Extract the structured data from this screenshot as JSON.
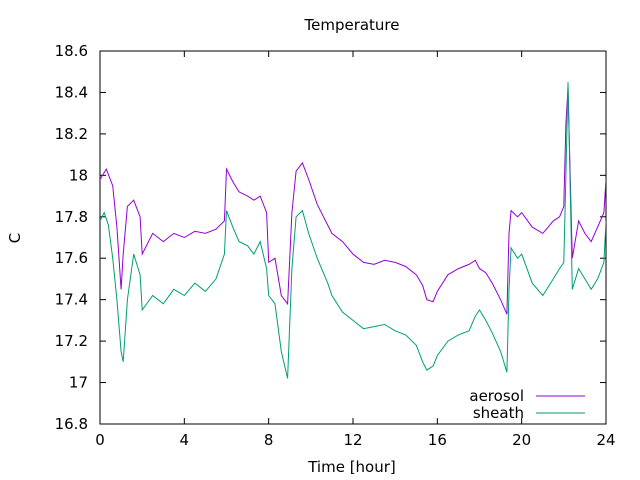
{
  "chart_data": {
    "type": "line",
    "title": "Temperature",
    "xlabel": "Time [hour]",
    "ylabel": "C",
    "xlim": [
      0,
      24
    ],
    "ylim": [
      16.8,
      18.6
    ],
    "xticks": [
      "0",
      "4",
      "8",
      "12",
      "16",
      "20",
      "24"
    ],
    "yticks": [
      "16.8",
      "17",
      "17.2",
      "17.4",
      "17.6",
      "17.8",
      "18",
      "18.2",
      "18.4",
      "18.6"
    ],
    "grid": false,
    "legend_position": "bottom-right",
    "series": [
      {
        "name": "aerosol",
        "color": "#9400d3",
        "x": [
          0,
          0.3,
          0.6,
          0.8,
          1.0,
          1.1,
          1.3,
          1.6,
          1.9,
          2.0,
          2.5,
          3.0,
          3.5,
          4.0,
          4.5,
          5.0,
          5.5,
          5.9,
          6.0,
          6.3,
          6.6,
          7.0,
          7.3,
          7.6,
          7.9,
          8.0,
          8.3,
          8.6,
          8.9,
          9.1,
          9.3,
          9.6,
          9.9,
          10.3,
          10.8,
          11.0,
          11.5,
          12.0,
          12.5,
          13.0,
          13.5,
          14.0,
          14.5,
          15.0,
          15.3,
          15.5,
          15.8,
          16.0,
          16.5,
          17.0,
          17.5,
          17.8,
          18.0,
          18.3,
          18.6,
          19.0,
          19.3,
          19.4,
          19.5,
          19.8,
          20.0,
          20.5,
          21.0,
          21.5,
          21.8,
          22.0,
          22.1,
          22.2,
          22.4,
          22.7,
          23.0,
          23.3,
          23.6,
          23.9,
          24.0
        ],
        "y": [
          17.98,
          18.03,
          17.95,
          17.75,
          17.45,
          17.62,
          17.85,
          17.88,
          17.8,
          17.62,
          17.72,
          17.68,
          17.72,
          17.7,
          17.73,
          17.72,
          17.74,
          17.78,
          18.03,
          17.97,
          17.92,
          17.9,
          17.88,
          17.9,
          17.82,
          17.58,
          17.6,
          17.42,
          17.38,
          17.82,
          18.02,
          18.06,
          17.98,
          17.86,
          17.76,
          17.72,
          17.68,
          17.62,
          17.58,
          17.57,
          17.59,
          17.58,
          17.56,
          17.52,
          17.47,
          17.4,
          17.39,
          17.44,
          17.52,
          17.55,
          17.57,
          17.59,
          17.55,
          17.53,
          17.48,
          17.4,
          17.33,
          17.72,
          17.83,
          17.8,
          17.82,
          17.75,
          17.72,
          17.78,
          17.8,
          17.85,
          18.25,
          18.42,
          17.6,
          17.78,
          17.72,
          17.68,
          17.75,
          17.82,
          17.98
        ]
      },
      {
        "name": "sheath",
        "color": "#009e73",
        "x": [
          0,
          0.2,
          0.4,
          0.6,
          0.8,
          1.0,
          1.1,
          1.3,
          1.6,
          1.9,
          2.0,
          2.5,
          3.0,
          3.5,
          4.0,
          4.5,
          5.0,
          5.5,
          5.9,
          6.0,
          6.3,
          6.6,
          7.0,
          7.3,
          7.6,
          7.9,
          8.0,
          8.3,
          8.6,
          8.9,
          9.1,
          9.3,
          9.6,
          9.9,
          10.3,
          10.8,
          11.0,
          11.5,
          12.0,
          12.5,
          13.0,
          13.5,
          14.0,
          14.5,
          15.0,
          15.3,
          15.5,
          15.8,
          16.0,
          16.5,
          17.0,
          17.5,
          17.8,
          18.0,
          18.3,
          18.6,
          19.0,
          19.3,
          19.4,
          19.5,
          19.8,
          20.0,
          20.5,
          21.0,
          21.5,
          21.8,
          22.0,
          22.1,
          22.2,
          22.4,
          22.7,
          23.0,
          23.3,
          23.6,
          23.9,
          24.0
        ],
        "y": [
          17.78,
          17.82,
          17.76,
          17.6,
          17.4,
          17.15,
          17.1,
          17.4,
          17.62,
          17.52,
          17.35,
          17.42,
          17.38,
          17.45,
          17.42,
          17.48,
          17.44,
          17.5,
          17.62,
          17.83,
          17.75,
          17.68,
          17.66,
          17.62,
          17.68,
          17.55,
          17.42,
          17.38,
          17.15,
          17.02,
          17.55,
          17.8,
          17.83,
          17.72,
          17.6,
          17.48,
          17.42,
          17.34,
          17.3,
          17.26,
          17.27,
          17.28,
          17.25,
          17.23,
          17.18,
          17.1,
          17.06,
          17.08,
          17.13,
          17.2,
          17.23,
          17.25,
          17.32,
          17.35,
          17.3,
          17.24,
          17.15,
          17.05,
          17.45,
          17.65,
          17.6,
          17.62,
          17.48,
          17.42,
          17.5,
          17.55,
          17.58,
          18.0,
          18.45,
          17.45,
          17.55,
          17.5,
          17.45,
          17.5,
          17.58,
          17.78
        ]
      }
    ]
  }
}
